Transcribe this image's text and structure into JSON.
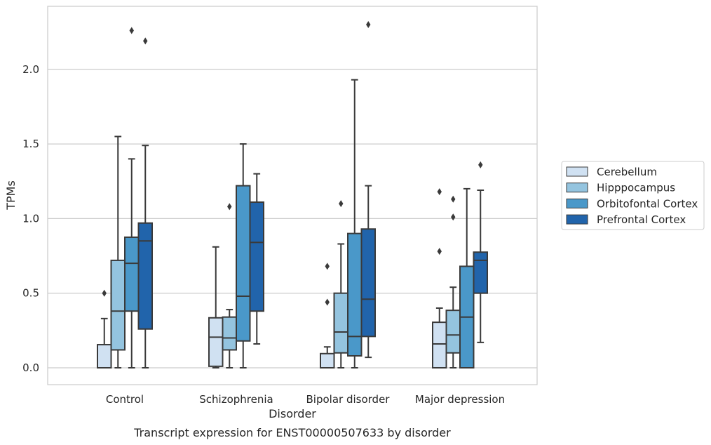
{
  "chart_data": {
    "type": "box",
    "title": "",
    "caption": "Transcript expression for ENST00000507633 by disorder",
    "xlabel": "Disorder",
    "ylabel": "TPMs",
    "ylim": [
      -0.11,
      2.42
    ],
    "yticks": [
      0.0,
      0.5,
      1.0,
      1.5,
      2.0
    ],
    "ytick_labels": [
      "0.0",
      "0.5",
      "1.0",
      "1.5",
      "2.0"
    ],
    "grid": true,
    "legend_position": "right",
    "categories": [
      "Control",
      "Schizophrenia",
      "Bipolar disorder",
      "Major depression"
    ],
    "series": [
      {
        "name": "Cerebellum",
        "color": "#d0e1f2",
        "boxes": [
          {
            "whisker_low": 0.0,
            "q1": 0.0,
            "median": 0.0,
            "q3": 0.155,
            "whisker_high": 0.33,
            "outliers": [
              0.5
            ]
          },
          {
            "whisker_low": 0.0,
            "q1": 0.01,
            "median": 0.205,
            "q3": 0.335,
            "whisker_high": 0.81,
            "outliers": []
          },
          {
            "whisker_low": 0.0,
            "q1": 0.0,
            "median": 0.0,
            "q3": 0.095,
            "whisker_high": 0.14,
            "outliers": [
              0.44,
              0.68
            ]
          },
          {
            "whisker_low": 0.0,
            "q1": 0.0,
            "median": 0.16,
            "q3": 0.305,
            "whisker_high": 0.4,
            "outliers": [
              0.78,
              1.18
            ]
          }
        ]
      },
      {
        "name": "Hipppocampus",
        "color": "#94c4df",
        "boxes": [
          {
            "whisker_low": 0.0,
            "q1": 0.12,
            "median": 0.38,
            "q3": 0.72,
            "whisker_high": 1.55,
            "outliers": []
          },
          {
            "whisker_low": 0.0,
            "q1": 0.12,
            "median": 0.2,
            "q3": 0.34,
            "whisker_high": 0.39,
            "outliers": [
              1.08
            ]
          },
          {
            "whisker_low": 0.0,
            "q1": 0.1,
            "median": 0.24,
            "q3": 0.5,
            "whisker_high": 0.83,
            "outliers": [
              1.1
            ]
          },
          {
            "whisker_low": 0.0,
            "q1": 0.1,
            "median": 0.22,
            "q3": 0.385,
            "whisker_high": 0.54,
            "outliers": [
              1.01,
              1.13
            ]
          }
        ]
      },
      {
        "name": "Orbitofontal Cortex",
        "color": "#4a98c9",
        "boxes": [
          {
            "whisker_low": 0.0,
            "q1": 0.38,
            "median": 0.7,
            "q3": 0.875,
            "whisker_high": 1.4,
            "outliers": [
              2.26
            ]
          },
          {
            "whisker_low": 0.0,
            "q1": 0.18,
            "median": 0.48,
            "q3": 1.22,
            "whisker_high": 1.5,
            "outliers": []
          },
          {
            "whisker_low": 0.0,
            "q1": 0.08,
            "median": 0.21,
            "q3": 0.9,
            "whisker_high": 1.93,
            "outliers": []
          },
          {
            "whisker_low": 0.0,
            "q1": 0.0,
            "median": 0.34,
            "q3": 0.68,
            "whisker_high": 1.2,
            "outliers": []
          }
        ]
      },
      {
        "name": "Prefrontal Cortex",
        "color": "#2164ab",
        "boxes": [
          {
            "whisker_low": 0.0,
            "q1": 0.26,
            "median": 0.85,
            "q3": 0.97,
            "whisker_high": 1.49,
            "outliers": [
              2.19
            ]
          },
          {
            "whisker_low": 0.16,
            "q1": 0.38,
            "median": 0.84,
            "q3": 1.11,
            "whisker_high": 1.3,
            "outliers": []
          },
          {
            "whisker_low": 0.07,
            "q1": 0.21,
            "median": 0.46,
            "q3": 0.93,
            "whisker_high": 1.22,
            "outliers": [
              2.3
            ]
          },
          {
            "whisker_low": 0.17,
            "q1": 0.5,
            "median": 0.72,
            "q3": 0.775,
            "whisker_high": 1.19,
            "outliers": [
              1.36
            ]
          }
        ]
      }
    ]
  }
}
